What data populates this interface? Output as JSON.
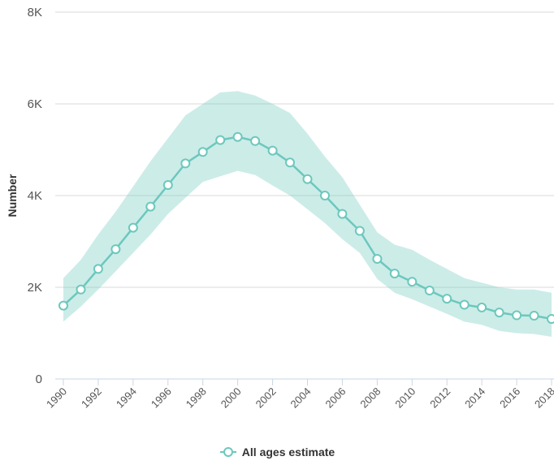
{
  "chart_data": {
    "type": "line",
    "ylabel": "Number",
    "xlabel": "",
    "ylim": [
      0,
      8000
    ],
    "yticks": [
      0,
      2000,
      4000,
      6000,
      8000
    ],
    "ytick_labels": [
      "0",
      "2K",
      "4K",
      "6K",
      "8K"
    ],
    "xticks": [
      1990,
      1992,
      1994,
      1996,
      1998,
      2000,
      2002,
      2004,
      2006,
      2008,
      2010,
      2012,
      2014,
      2016,
      2018
    ],
    "grid": true,
    "legend_position": "bottom-center",
    "series": [
      {
        "name": "All ages estimate",
        "color": "#6cc8bd",
        "x": [
          1990,
          1991,
          1992,
          1993,
          1994,
          1995,
          1996,
          1997,
          1998,
          1999,
          2000,
          2001,
          2002,
          2003,
          2004,
          2005,
          2006,
          2007,
          2008,
          2009,
          2010,
          2011,
          2012,
          2013,
          2014,
          2015,
          2016,
          2017,
          2018
        ],
        "values": [
          1600,
          1950,
          2400,
          2830,
          3300,
          3760,
          4230,
          4700,
          4950,
          5210,
          5280,
          5190,
          4980,
          4720,
          4360,
          4000,
          3600,
          3230,
          2620,
          2300,
          2120,
          1930,
          1750,
          1620,
          1560,
          1450,
          1390,
          1380,
          1310
        ],
        "upper": [
          2200,
          2600,
          3150,
          3650,
          4200,
          4750,
          5250,
          5750,
          6000,
          6250,
          6280,
          6180,
          6000,
          5800,
          5350,
          4850,
          4400,
          3800,
          3200,
          2930,
          2820,
          2600,
          2400,
          2200,
          2100,
          2000,
          1950,
          1950,
          1880
        ],
        "lower": [
          1250,
          1580,
          1950,
          2350,
          2750,
          3150,
          3600,
          3950,
          4300,
          4420,
          4540,
          4450,
          4220,
          4000,
          3700,
          3400,
          3050,
          2750,
          2180,
          1880,
          1740,
          1580,
          1420,
          1250,
          1180,
          1050,
          1000,
          980,
          920
        ]
      }
    ]
  }
}
